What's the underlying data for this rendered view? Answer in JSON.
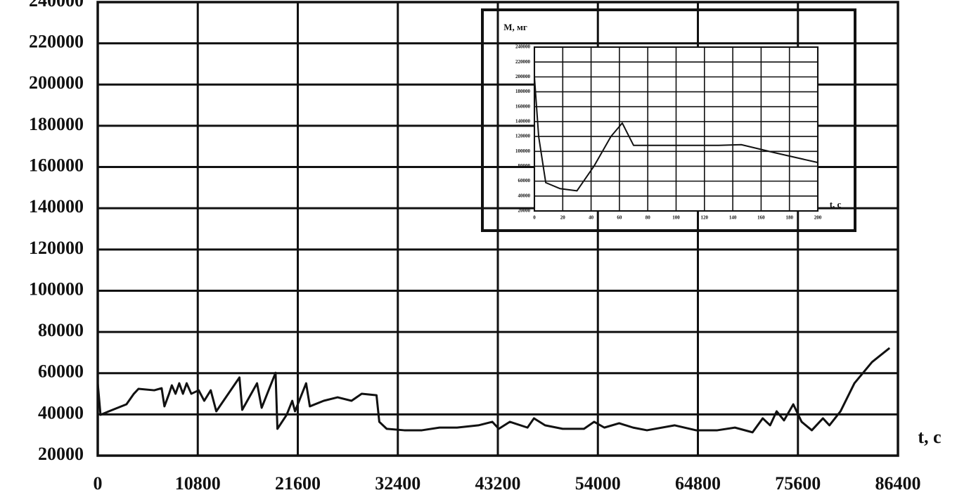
{
  "chart_data": [
    {
      "type": "line",
      "x_label": "t, c",
      "xlim": [
        0,
        86400
      ],
      "xticks": [
        0,
        10800,
        21600,
        32400,
        43200,
        54000,
        64800,
        75600,
        86400
      ],
      "ylim": [
        20000,
        240000
      ],
      "yticks": [
        20000,
        40000,
        60000,
        80000,
        100000,
        120000,
        140000,
        160000,
        180000,
        200000,
        220000,
        240000
      ],
      "grid": true,
      "color": "#111111",
      "x": [
        0,
        300,
        1200,
        3100,
        3900,
        4400,
        6100,
        6900,
        7200,
        7700,
        8000,
        8400,
        8800,
        9200,
        9600,
        10100,
        10900,
        11500,
        12200,
        12800,
        15300,
        15600,
        17200,
        17700,
        19200,
        19400,
        20400,
        21000,
        21300,
        22500,
        22900,
        24400,
        25900,
        27400,
        28500,
        30100,
        30400,
        31200,
        33100,
        35000,
        36900,
        38800,
        41100,
        42600,
        43300,
        44500,
        46400,
        47100,
        48300,
        50200,
        52500,
        53600,
        54700,
        56300,
        57800,
        59300,
        62300,
        64600,
        66900,
        68800,
        70700,
        71800,
        72600,
        73300,
        74100,
        75100,
        76000,
        77100,
        78300,
        79000,
        80200,
        81700,
        83600,
        85500
      ],
      "values": [
        55100,
        39800,
        41500,
        44900,
        50000,
        52400,
        51700,
        52700,
        43900,
        50000,
        54100,
        50000,
        55100,
        50000,
        55100,
        50000,
        51700,
        46600,
        51700,
        41500,
        57900,
        42200,
        55100,
        43200,
        60200,
        33000,
        39800,
        46600,
        41500,
        55100,
        43900,
        46600,
        48300,
        46600,
        50000,
        49300,
        36400,
        33000,
        32300,
        32300,
        33600,
        33600,
        34700,
        36400,
        33000,
        36400,
        33600,
        38100,
        34700,
        33000,
        33000,
        36400,
        33600,
        35700,
        33600,
        32300,
        34700,
        32300,
        32300,
        33600,
        31300,
        38100,
        34700,
        41500,
        37100,
        44900,
        36400,
        32300,
        38100,
        34700,
        41500,
        55100,
        65400,
        72200
      ]
    },
    {
      "type": "line",
      "y_label": "M, мг",
      "x_label": "t, c",
      "xlim": [
        0,
        200
      ],
      "xticks": [
        0,
        20,
        40,
        60,
        80,
        100,
        120,
        140,
        160,
        180,
        200
      ],
      "ylim": [
        20000,
        240000
      ],
      "yticks": [
        20000,
        40000,
        60000,
        80000,
        100000,
        120000,
        140000,
        160000,
        180000,
        200000,
        220000,
        240000
      ],
      "grid": true,
      "color": "#111111",
      "x": [
        0,
        3,
        8,
        18,
        30,
        42,
        54,
        62,
        70,
        100,
        130,
        146,
        170,
        200
      ],
      "values": [
        200000,
        120000,
        58000,
        50000,
        47000,
        80000,
        120000,
        138000,
        108000,
        108000,
        108000,
        109000,
        98000,
        85000
      ]
    }
  ]
}
